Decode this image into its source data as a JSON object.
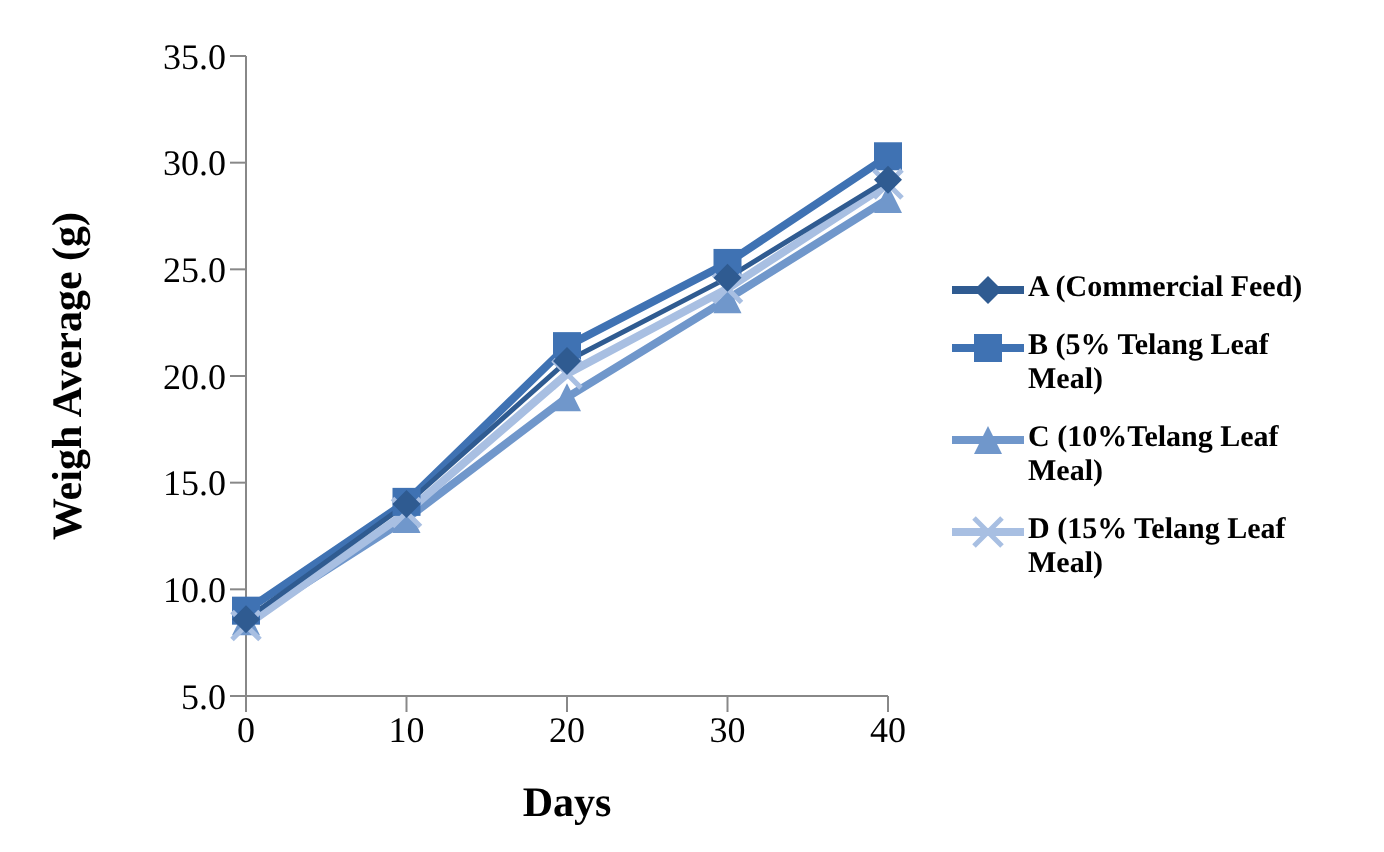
{
  "chart_data": {
    "type": "line",
    "xlabel": "Days",
    "ylabel": "Weigh Average (g)",
    "categories": [
      "0",
      "10",
      "20",
      "30",
      "40"
    ],
    "series": [
      {
        "name": "A (Commercial Feed)",
        "color": "#2f5b91",
        "marker": "diamond",
        "values": [
          8.6,
          14.0,
          20.7,
          24.6,
          29.2
        ]
      },
      {
        "name": "B (5% Telang Leaf Meal)",
        "color": "#3f72b3",
        "marker": "square",
        "values": [
          9.0,
          14.1,
          21.4,
          25.3,
          30.3
        ]
      },
      {
        "name": "C (10%Telang Leaf Meal)",
        "color": "#7097cb",
        "marker": "triangle",
        "values": [
          8.5,
          13.3,
          19.0,
          23.6,
          28.3
        ]
      },
      {
        "name": "D (15% Telang Leaf Meal)",
        "color": "#a8bfe2",
        "marker": "cross",
        "values": [
          8.3,
          13.6,
          20.1,
          24.1,
          29.0
        ]
      }
    ],
    "ylim": [
      5,
      35
    ],
    "yticks": [
      {
        "value": 5,
        "label": "5.0"
      },
      {
        "value": 10,
        "label": "10.0"
      },
      {
        "value": 15,
        "label": "15.0"
      },
      {
        "value": 20,
        "label": "20.0"
      },
      {
        "value": 25,
        "label": "25.0"
      },
      {
        "value": 30,
        "label": "30.0"
      },
      {
        "value": 35,
        "label": "35.0"
      }
    ],
    "grid": false,
    "legend": "right"
  }
}
